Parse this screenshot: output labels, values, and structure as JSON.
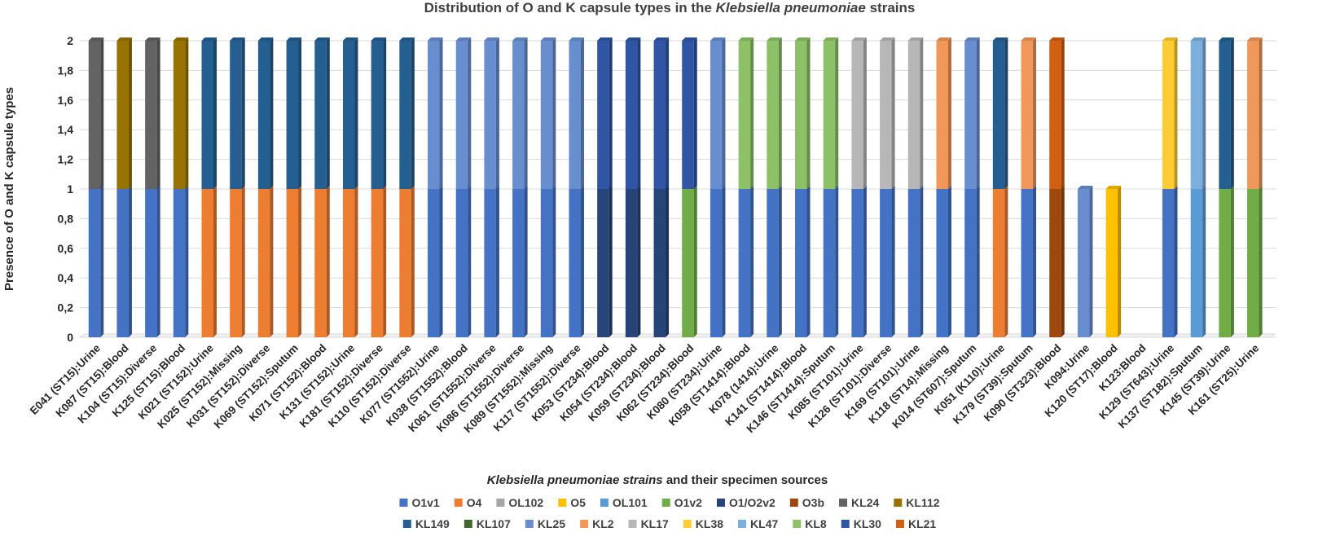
{
  "chart_data": {
    "type": "bar",
    "stacked": true,
    "title_parts": [
      "Distribution of O and K capsule types in the ",
      "Klebsiella pneumoniae",
      " strains"
    ],
    "xlabel_parts": [
      "Klebsiella pneumoniae strains",
      " and their specimen sources"
    ],
    "ylabel": "Presence of O and K capsule types",
    "ylim": [
      0,
      2
    ],
    "y_ticks": [
      "0",
      "0,2",
      "0,4",
      "0,6",
      "0,8",
      "1",
      "1,2",
      "1,4",
      "1,6",
      "1,8",
      "2"
    ],
    "grid": true,
    "legend_position": "bottom",
    "categories": [
      "E041 (ST15):Urine",
      "K087 (ST15):Blood",
      "K104 (ST15):Diverse",
      "K125 (ST15):Blood",
      "K021 (ST152):Urine",
      "K025 (ST152):Missing",
      "K031 (ST152):Diverse",
      "K069 (ST152):Sputum",
      "K071 (ST152):Blood",
      "K131 (ST152):Urine",
      "K181 (ST152):Diverse",
      "K110 (ST152):Diverse",
      "K077 (ST1552):Urine",
      "K038 (ST1552):Blood",
      "K061 (ST1552):Diverse",
      "K086 (ST1552):Diverse",
      "K089 (ST1552):Missing",
      "K117 (ST1552):Diverse",
      "K053 (ST234):Blood",
      "K054 (ST234):Blood",
      "K059 (ST234):Blood",
      "K062 (ST234):Blood",
      "K080 (ST234):Urine",
      "K058 (ST1414):Blood",
      "K078 (1414):Urine",
      "K141 (ST1414):Blood",
      "K146 (ST1414):Sputum",
      "K085 (ST101):Urine",
      "K126 (ST101):Diverse",
      "K169 (ST101):Urine",
      "K118 (ST14):Missing",
      "K014 (ST607):Sputum",
      "K051 (K110):Urine",
      "K179 (ST39):Sputum",
      "K090 (ST323):Blood",
      "K094:Urine",
      "K120 (ST17):Blood",
      "K123:Blood",
      "K129 (ST643):Urine",
      "K137 (ST182):Sputum",
      "K145 (ST39):Urine",
      "K161 (ST25):Urine"
    ],
    "o_type": [
      "O1v1",
      "O1v1",
      "O1v1",
      "O1v1",
      "O4",
      "O4",
      "O4",
      "O4",
      "O4",
      "O4",
      "O4",
      "O4",
      "O1v1",
      "O1v1",
      "O1v1",
      "O1v1",
      "O1v1",
      "O1v1",
      "O1/O2v2",
      "O1/O2v2",
      "O1/O2v2",
      "O1v2",
      "O1v1",
      "O1v1",
      "O1v1",
      "O1v1",
      "O1v1",
      "O1v1",
      "O1v1",
      "O1v1",
      "O1v1",
      "O1v1",
      "O4",
      "O1v1",
      "O3b",
      null,
      "O5",
      null,
      "O1v1",
      "OL101",
      "O1v2",
      "O1v2"
    ],
    "k_type": [
      "KL24",
      "KL112",
      "KL24",
      "KL112",
      "KL149",
      "KL149",
      "KL149",
      "KL149",
      "KL149",
      "KL149",
      "KL149",
      "KL149",
      "KL25",
      "KL25",
      "KL25",
      "KL25",
      "KL25",
      "KL25",
      "KL30",
      "KL30",
      "KL30",
      "KL30",
      "KL25",
      "KL8",
      "KL8",
      "KL8",
      "KL8",
      "KL17",
      "KL17",
      "KL17",
      "KL2",
      "KL25",
      "KL149",
      "KL2",
      "KL21",
      "KL25",
      null,
      null,
      "KL38",
      "KL47",
      "KL149",
      "KL2"
    ],
    "series": [
      {
        "name": "O1v1",
        "color": "#4472C4"
      },
      {
        "name": "O4",
        "color": "#ED7D31"
      },
      {
        "name": "OL102",
        "color": "#A5A5A5"
      },
      {
        "name": "O5",
        "color": "#FFC000"
      },
      {
        "name": "OL101",
        "color": "#5B9BD5"
      },
      {
        "name": "O1v2",
        "color": "#70AD47"
      },
      {
        "name": "O1/O2v2",
        "color": "#264478"
      },
      {
        "name": "O3b",
        "color": "#9E480E"
      },
      {
        "name": "KL24",
        "color": "#636363"
      },
      {
        "name": "KL112",
        "color": "#997300"
      },
      {
        "name": "KL149",
        "color": "#255E91"
      },
      {
        "name": "KL107",
        "color": "#43682B"
      },
      {
        "name": "KL25",
        "color": "#698ED0"
      },
      {
        "name": "KL2",
        "color": "#F1975A"
      },
      {
        "name": "KL17",
        "color": "#B7B7B7"
      },
      {
        "name": "KL38",
        "color": "#FFCD33"
      },
      {
        "name": "KL47",
        "color": "#7CAFDD"
      },
      {
        "name": "KL8",
        "color": "#8CC168"
      },
      {
        "name": "KL30",
        "color": "#2F55A4"
      },
      {
        "name": "KL21",
        "color": "#D26012"
      }
    ]
  }
}
